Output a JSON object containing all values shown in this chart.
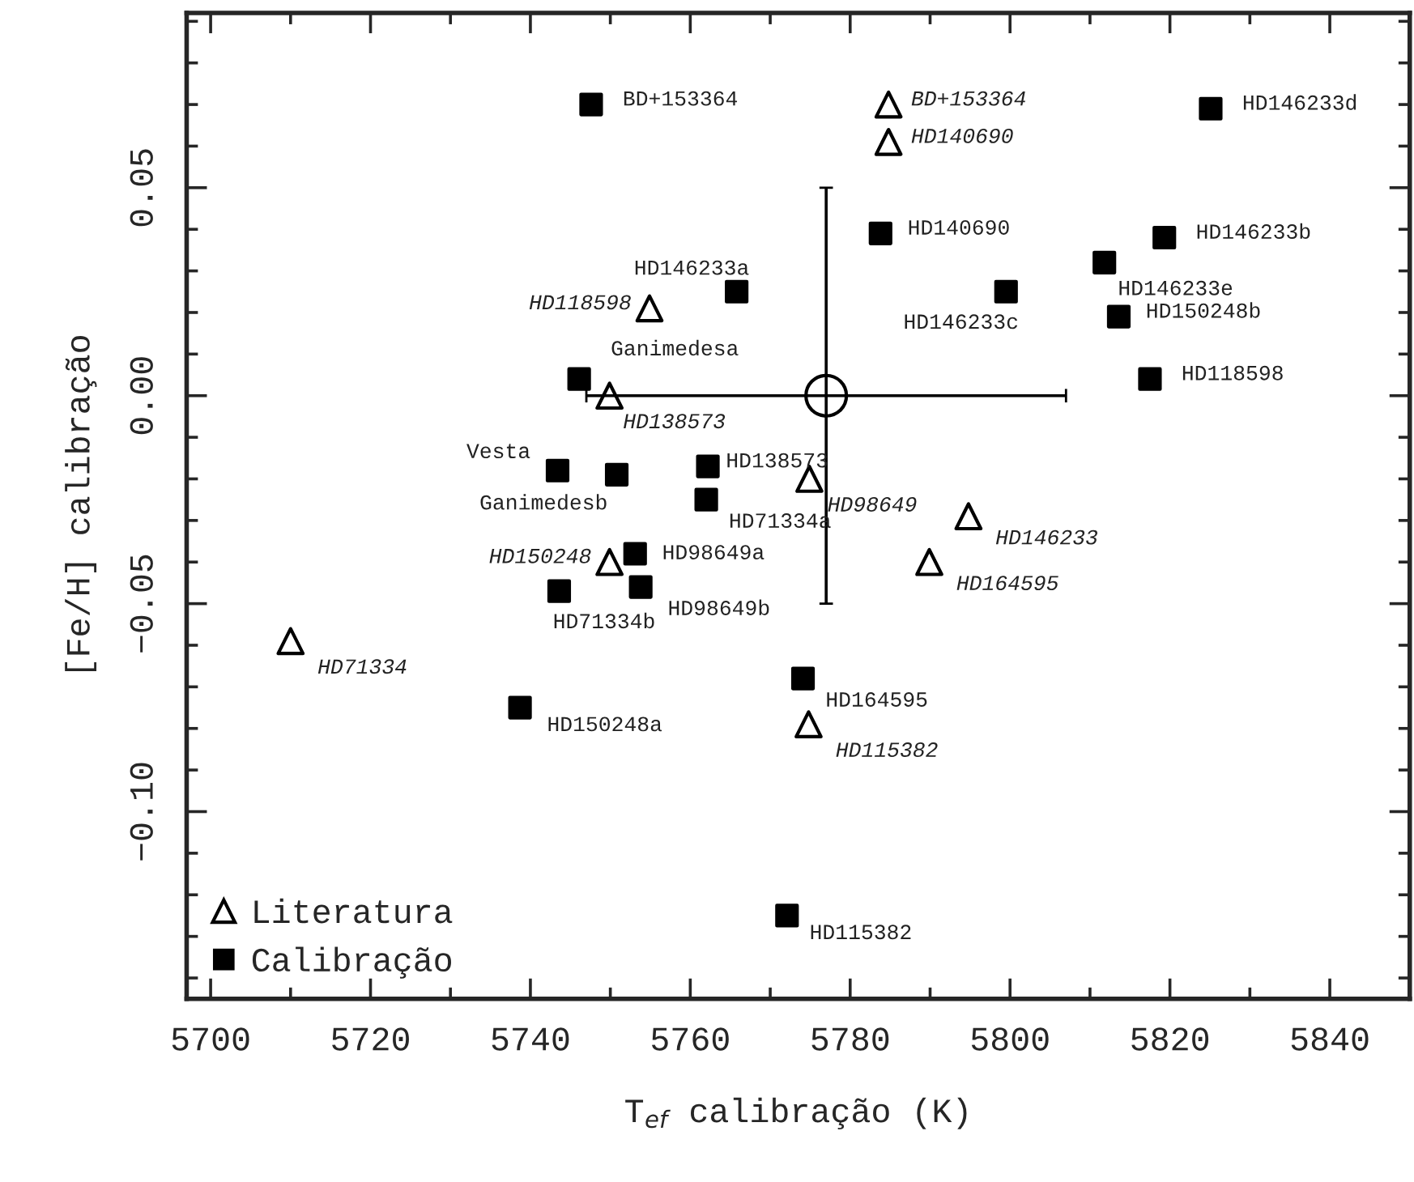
{
  "chart_data": {
    "type": "scatter",
    "xlabel": "T$_{ef}$ calibração (K)",
    "ylabel": "[Fe/H] calibração",
    "xlim": [
      5697,
      5850
    ],
    "ylim": [
      -0.145,
      0.092
    ],
    "xticks": [
      5700,
      5720,
      5740,
      5760,
      5780,
      5800,
      5820,
      5840
    ],
    "yticks": [
      {
        "value": 0.05,
        "label": "0.05"
      },
      {
        "value": 0,
        "label": "0.00"
      },
      {
        "value": -0.05,
        "label": "−0.05"
      },
      {
        "value": -0.1,
        "label": "−0.10"
      }
    ],
    "legend": "bottom left",
    "grid": false,
    "series": [
      {
        "name": "Literatura",
        "color": "#000000",
        "marker": "triangle",
        "x": [
          5784.8,
          5784.8,
          5754.9,
          5749.9,
          5774.9,
          5794.8,
          5749.9,
          5789.9,
          5710.0,
          5774.8
        ],
        "values": [
          0.07,
          0.061,
          0.021,
          0.0,
          -0.02,
          -0.029,
          -0.04,
          -0.04,
          -0.059,
          -0.079
        ]
      },
      {
        "name": "Calibração",
        "color": "#000000",
        "marker": "square",
        "x": [
          5747.6,
          5825.1,
          5783.8,
          5819.3,
          5811.8,
          5765.8,
          5799.5,
          5813.6,
          5746.1,
          5817.5,
          5743.4,
          5750.8,
          5762.2,
          5762.0,
          5753.1,
          5743.6,
          5753.8,
          5774.1,
          5738.7,
          5772.1
        ],
        "values": [
          0.07,
          0.069,
          0.039,
          0.038,
          0.032,
          0.025,
          0.025,
          0.019,
          0.004,
          0.004,
          -0.018,
          -0.019,
          -0.017,
          -0.025,
          -0.038,
          -0.047,
          -0.046,
          -0.068,
          -0.075,
          -0.125
        ]
      },
      {
        "color": "#000000",
        "marker": "circle",
        "x": [
          5777
        ],
        "values": [
          0.0
        ],
        "errors": [
          0.05
        ],
        "xerrors": [
          30
        ]
      }
    ],
    "annotations": [
      {
        "text": "BD+153364",
        "x": 5784.8,
        "y": 0.07
      },
      {
        "text": "HD140690",
        "x": 5784.8,
        "y": 0.061
      },
      {
        "text": "HD118598",
        "x": 5754.9,
        "y": 0.021
      },
      {
        "text": "HD138573",
        "x": 5749.9,
        "y": 0.0
      },
      {
        "text": "HD98649",
        "x": 5774.9,
        "y": -0.02
      },
      {
        "text": "HD146233",
        "x": 5794.8,
        "y": -0.029
      },
      {
        "text": "HD150248",
        "x": 5749.9,
        "y": -0.04
      },
      {
        "text": "HD164595",
        "x": 5789.9,
        "y": -0.04
      },
      {
        "text": "HD71334",
        "x": 5710.0,
        "y": -0.059
      },
      {
        "text": "HD115382",
        "x": 5774.8,
        "y": -0.079
      },
      {
        "text": "BD+153364",
        "x": 5747.6,
        "y": 0.07
      },
      {
        "text": "HD146233d",
        "x": 5825.1,
        "y": 0.069
      },
      {
        "text": "HD140690",
        "x": 5783.8,
        "y": 0.039
      },
      {
        "text": "HD146233b",
        "x": 5819.3,
        "y": 0.038
      },
      {
        "text": "HD146233e",
        "x": 5811.8,
        "y": 0.032
      },
      {
        "text": "HD146233a",
        "x": 5765.8,
        "y": 0.025
      },
      {
        "text": "HD146233c",
        "x": 5799.5,
        "y": 0.025
      },
      {
        "text": "HD150248b",
        "x": 5813.6,
        "y": 0.019
      },
      {
        "text": "Ganimedesa",
        "x": 5746.1,
        "y": 0.004
      },
      {
        "text": "HD118598",
        "x": 5817.5,
        "y": 0.004
      },
      {
        "text": "Vesta",
        "x": 5743.4,
        "y": -0.018
      },
      {
        "text": "Ganimedesb",
        "x": 5750.8,
        "y": -0.019
      },
      {
        "text": "HD138573",
        "x": 5762.2,
        "y": -0.017
      },
      {
        "text": "HD71334a",
        "x": 5762.0,
        "y": -0.025
      },
      {
        "text": "HD98649a",
        "x": 5753.1,
        "y": -0.038
      },
      {
        "text": "HD71334b",
        "x": 5743.6,
        "y": -0.047
      },
      {
        "text": "HD98649b",
        "x": 5753.8,
        "y": -0.046
      },
      {
        "text": "HD164595",
        "x": 5774.1,
        "y": -0.068
      },
      {
        "text": "HD150248a",
        "x": 5738.7,
        "y": -0.075
      },
      {
        "text": "HD115382",
        "x": 5772.1,
        "y": -0.125
      }
    ]
  }
}
